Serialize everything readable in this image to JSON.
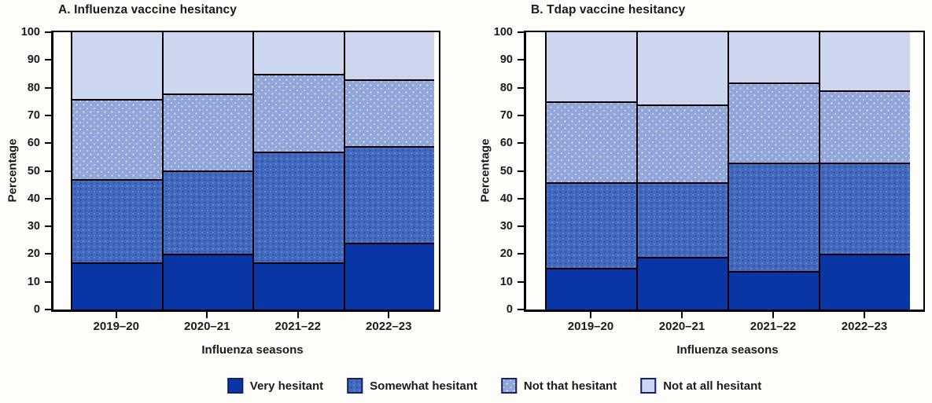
{
  "page": {
    "background_color": "#FDFEF9",
    "line_color": "#000000"
  },
  "chart_data": [
    {
      "type": "bar",
      "stacked": true,
      "title": "A. Influenza vaccine hesitancy",
      "xlabel": "Influenza seasons",
      "ylabel": "Percentage",
      "ylim": [
        0,
        100
      ],
      "yticks": [
        0,
        10,
        20,
        30,
        40,
        50,
        60,
        70,
        80,
        90,
        100
      ],
      "grid": false,
      "legend_position": "bottom",
      "categories": [
        "2019–20",
        "2020–21",
        "2021–22",
        "2022–23"
      ],
      "series": [
        {
          "name": "Very hesitant",
          "color": "#0A35A5",
          "pattern": "pat0",
          "values": [
            17,
            20,
            17,
            24
          ]
        },
        {
          "name": "Somewhat hesitant",
          "color": "#4269BD",
          "pattern": "pat1",
          "values": [
            30,
            30,
            40,
            35
          ]
        },
        {
          "name": "Not that hesitant",
          "color": "#93A6DB",
          "pattern": "pat2",
          "values": [
            29,
            28,
            28,
            24
          ]
        },
        {
          "name": "Not at all hesitant",
          "color": "#CCD6EE",
          "pattern": "pat3",
          "values": [
            24,
            22,
            15,
            17
          ]
        }
      ]
    },
    {
      "type": "bar",
      "stacked": true,
      "title": "B. Tdap vaccine hesitancy",
      "xlabel": "Influenza seasons",
      "ylabel": "Percentage",
      "ylim": [
        0,
        100
      ],
      "yticks": [
        0,
        10,
        20,
        30,
        40,
        50,
        60,
        70,
        80,
        90,
        100
      ],
      "grid": false,
      "legend_position": "bottom",
      "categories": [
        "2019–20",
        "2020–21",
        "2021–22",
        "2022–23"
      ],
      "series": [
        {
          "name": "Very hesitant",
          "color": "#0A35A5",
          "pattern": "pat0",
          "values": [
            15,
            19,
            14,
            20
          ]
        },
        {
          "name": "Somewhat hesitant",
          "color": "#4269BD",
          "pattern": "pat1",
          "values": [
            31,
            27,
            39,
            33
          ]
        },
        {
          "name": "Not that hesitant",
          "color": "#93A6DB",
          "pattern": "pat2",
          "values": [
            29,
            28,
            29,
            26
          ]
        },
        {
          "name": "Not at all hesitant",
          "color": "#CCD6EE",
          "pattern": "pat3",
          "values": [
            25,
            26,
            18,
            21
          ]
        }
      ]
    }
  ],
  "legend": {
    "items": [
      {
        "label": "Very hesitant",
        "color": "#0A35A5",
        "pattern": "pat0"
      },
      {
        "label": "Somewhat hesitant",
        "color": "#4269BD",
        "pattern": "pat1"
      },
      {
        "label": "Not that hesitant",
        "color": "#93A6DB",
        "pattern": "pat2"
      },
      {
        "label": "Not at all hesitant",
        "color": "#CCD6EE",
        "pattern": "pat3"
      }
    ]
  }
}
